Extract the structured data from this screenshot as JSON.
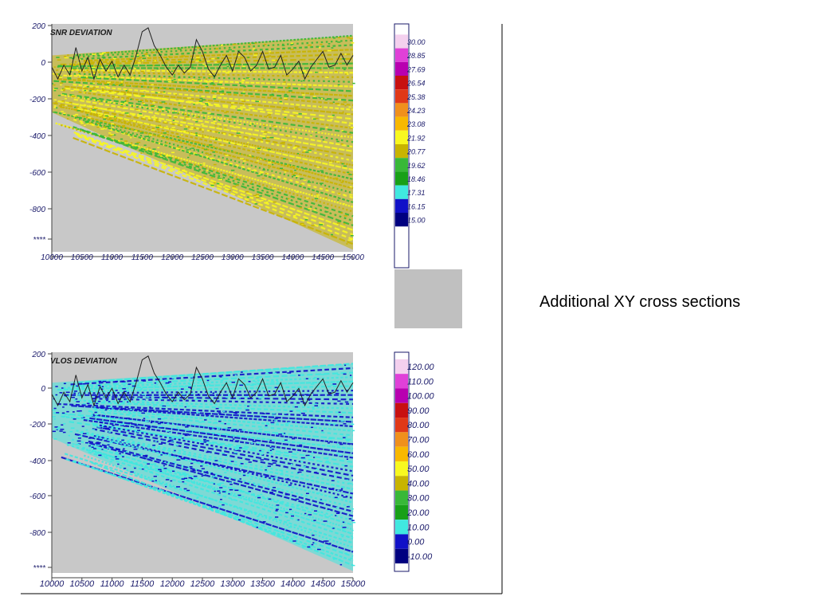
{
  "caption": "Additional XY cross sections",
  "chart_data": [
    {
      "type": "heatmap",
      "title": "SNR DEVIATION",
      "xlabel": "",
      "ylabel": "",
      "x_ticks": [
        "10000",
        "10500",
        "11000",
        "11500",
        "12000",
        "12500",
        "13000",
        "13500",
        "14000",
        "14500",
        "15000"
      ],
      "y_ticks": [
        "200",
        "0",
        "-200",
        "-400",
        "-600",
        "-800",
        "****"
      ],
      "xlim": [
        10000,
        15000
      ],
      "ylim": [
        -960,
        200
      ],
      "colorbar": {
        "labels": [
          "30.00",
          "28.85",
          "27.69",
          "26.54",
          "25.38",
          "24.23",
          "23.08",
          "21.92",
          "20.77",
          "19.62",
          "18.46",
          "17.31",
          "16.15",
          "15.00"
        ],
        "colors": [
          "#f4d0ee",
          "#e040d8",
          "#b800b0",
          "#c81010",
          "#e03818",
          "#f0901c",
          "#f8b800",
          "#f8f820",
          "#c8b400",
          "#38b838",
          "#18a018",
          "#40e8e0",
          "#1010c8",
          "#000080"
        ]
      },
      "background_color": "#c8c8c8",
      "dominant_colors": [
        "#c8b400",
        "#38b838",
        "#f8f820"
      ],
      "profile_line": [
        [
          10000,
          -20
        ],
        [
          10100,
          -80
        ],
        [
          10200,
          -10
        ],
        [
          10300,
          -60
        ],
        [
          10400,
          80
        ],
        [
          10500,
          -40
        ],
        [
          10600,
          30
        ],
        [
          10700,
          -80
        ],
        [
          10800,
          20
        ],
        [
          10900,
          -40
        ],
        [
          11000,
          10
        ],
        [
          11100,
          -70
        ],
        [
          11200,
          -10
        ],
        [
          11300,
          -60
        ],
        [
          11400,
          40
        ],
        [
          11500,
          160
        ],
        [
          11600,
          180
        ],
        [
          11700,
          90
        ],
        [
          11800,
          40
        ],
        [
          11900,
          -20
        ],
        [
          12000,
          -60
        ],
        [
          12100,
          -10
        ],
        [
          12200,
          -50
        ],
        [
          12300,
          -20
        ],
        [
          12400,
          120
        ],
        [
          12500,
          60
        ],
        [
          12600,
          -30
        ],
        [
          12700,
          -70
        ],
        [
          12800,
          -10
        ],
        [
          12900,
          40
        ],
        [
          13000,
          -40
        ],
        [
          13100,
          60
        ],
        [
          13200,
          30
        ],
        [
          13300,
          -40
        ],
        [
          13400,
          -10
        ],
        [
          13500,
          60
        ],
        [
          13600,
          -30
        ],
        [
          13700,
          -20
        ],
        [
          13800,
          40
        ],
        [
          13900,
          -60
        ],
        [
          14000,
          -30
        ],
        [
          14100,
          10
        ],
        [
          14200,
          -80
        ],
        [
          14300,
          -20
        ],
        [
          14400,
          20
        ],
        [
          14500,
          60
        ],
        [
          14600,
          -20
        ],
        [
          14700,
          -10
        ],
        [
          14800,
          50
        ],
        [
          14900,
          -10
        ],
        [
          15000,
          40
        ]
      ]
    },
    {
      "type": "heatmap",
      "title": "VLOS DEVIATION",
      "xlabel": "",
      "ylabel": "",
      "x_ticks": [
        "10000",
        "10500",
        "11000",
        "11500",
        "12000",
        "12500",
        "13000",
        "13500",
        "14000",
        "14500",
        "15000"
      ],
      "y_ticks": [
        "200",
        "0",
        "-200",
        "-400",
        "-600",
        "-800",
        "****"
      ],
      "xlim": [
        10000,
        15000
      ],
      "ylim": [
        -960,
        200
      ],
      "colorbar": {
        "labels": [
          "120.00",
          "110.00",
          "100.00",
          "90.00",
          "80.00",
          "70.00",
          "60.00",
          "50.00",
          "40.00",
          "30.00",
          "20.00",
          "10.00",
          "0.00",
          "-10.00"
        ],
        "colors": [
          "#f4d0ee",
          "#e040d8",
          "#b800b0",
          "#c81010",
          "#e03818",
          "#f0901c",
          "#f8b800",
          "#f8f820",
          "#c8b400",
          "#38b838",
          "#18a018",
          "#40e8e0",
          "#1010c8",
          "#000080"
        ]
      },
      "background_color": "#c8c8c8",
      "dominant_colors": [
        "#40e8e0",
        "#1010c8"
      ],
      "profile_line": [
        [
          10000,
          -20
        ],
        [
          10100,
          -80
        ],
        [
          10200,
          -10
        ],
        [
          10300,
          -60
        ],
        [
          10400,
          80
        ],
        [
          10500,
          -40
        ],
        [
          10600,
          30
        ],
        [
          10700,
          -80
        ],
        [
          10800,
          20
        ],
        [
          10900,
          -40
        ],
        [
          11000,
          10
        ],
        [
          11100,
          -70
        ],
        [
          11200,
          -10
        ],
        [
          11300,
          -60
        ],
        [
          11400,
          40
        ],
        [
          11500,
          160
        ],
        [
          11600,
          180
        ],
        [
          11700,
          90
        ],
        [
          11800,
          40
        ],
        [
          11900,
          -20
        ],
        [
          12000,
          -60
        ],
        [
          12100,
          -10
        ],
        [
          12200,
          -50
        ],
        [
          12300,
          -20
        ],
        [
          12400,
          120
        ],
        [
          12500,
          60
        ],
        [
          12600,
          -30
        ],
        [
          12700,
          -70
        ],
        [
          12800,
          -10
        ],
        [
          12900,
          40
        ],
        [
          13000,
          -40
        ],
        [
          13100,
          60
        ],
        [
          13200,
          30
        ],
        [
          13300,
          -40
        ],
        [
          13400,
          -10
        ],
        [
          13500,
          60
        ],
        [
          13600,
          -30
        ],
        [
          13700,
          -20
        ],
        [
          13800,
          40
        ],
        [
          13900,
          -60
        ],
        [
          14000,
          -30
        ],
        [
          14100,
          10
        ],
        [
          14200,
          -80
        ],
        [
          14300,
          -20
        ],
        [
          14400,
          20
        ],
        [
          14500,
          60
        ],
        [
          14600,
          -20
        ],
        [
          14700,
          -10
        ],
        [
          14800,
          50
        ],
        [
          14900,
          -10
        ],
        [
          15000,
          40
        ]
      ]
    }
  ]
}
